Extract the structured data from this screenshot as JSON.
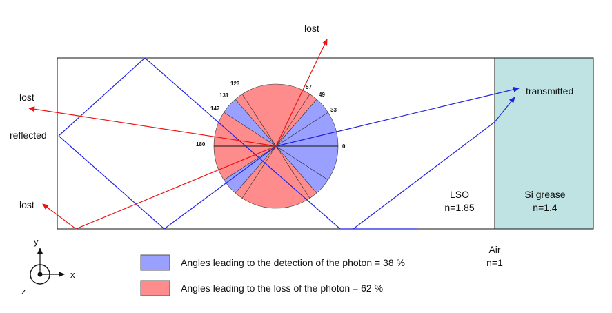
{
  "diagram": {
    "labels": {
      "lost_top": "lost",
      "lost_left_upper": "lost",
      "lost_left_lower": "lost",
      "reflected": "reflected",
      "transmitted": "transmitted",
      "lso_name": "LSO",
      "lso_index": "n=1.85",
      "grease_name": "Si grease",
      "grease_index": "n=1.4",
      "air_name": "Air",
      "air_index": "n=1"
    },
    "angles": [
      "0",
      "33",
      "49",
      "57",
      "123",
      "131",
      "147",
      "180"
    ],
    "axes": {
      "x": "x",
      "y": "y",
      "z": "z"
    },
    "legend": [
      {
        "color": "#9aa0ff",
        "text": "Angles leading to the detection of the photon = 38 %"
      },
      {
        "color": "#ff8c8c",
        "text": "Angles leading to the loss of the photon = 62 %"
      }
    ],
    "colors": {
      "detection": "#9aa0ff",
      "loss": "#ff8c8c",
      "grease": "#bfe3e3",
      "ray_reflect": "#2222dd",
      "ray_lost": "#ee1111"
    }
  }
}
